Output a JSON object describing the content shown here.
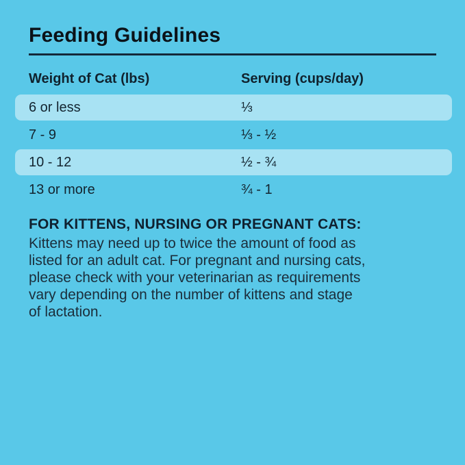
{
  "theme": {
    "background": "#59C8E8",
    "band_color": "#A8E2F3",
    "rule_color": "#14293A",
    "text_color": "#132530"
  },
  "title": "Feeding Guidelines",
  "table": {
    "columns": [
      {
        "label": "Weight of Cat (lbs)"
      },
      {
        "label": "Serving (cups/day)"
      }
    ],
    "rows": [
      {
        "weight": "6 or less",
        "serving": "⅓",
        "highlighted": true
      },
      {
        "weight": "7 - 9",
        "serving": "⅓ - ½",
        "highlighted": false
      },
      {
        "weight": "10 - 12",
        "serving": "½ - ¾",
        "highlighted": true
      },
      {
        "weight": "13 or more",
        "serving": "¾ - 1",
        "highlighted": false
      }
    ]
  },
  "kittens_note": {
    "heading": "FOR KITTENS, NURSING OR PREGNANT CATS:",
    "body": "Kittens may need up to twice the amount of food as\nlisted for an adult cat. For pregnant and nursing cats,\nplease check with your veterinarian as requirements\nvary depending on the number of kittens and stage\nof lactation."
  }
}
